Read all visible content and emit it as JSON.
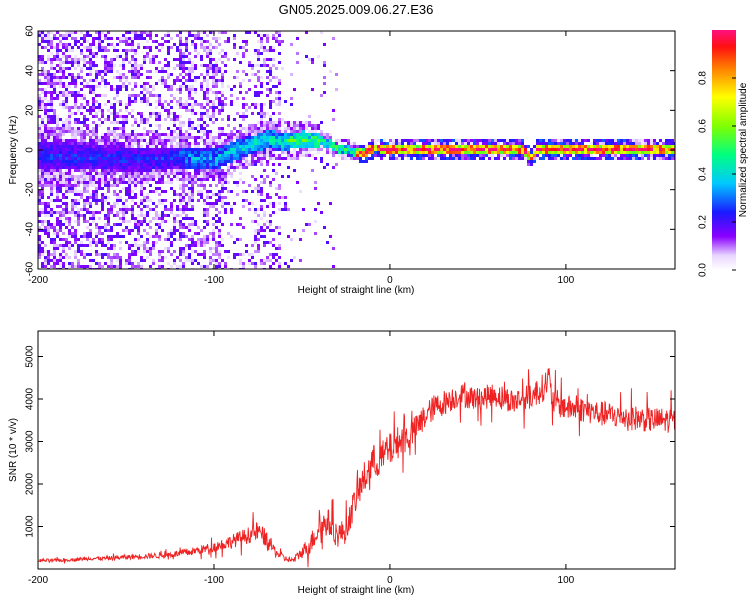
{
  "title": "GN05.2025.009.06.27.E36",
  "chart_data": [
    {
      "type": "heatmap",
      "xlabel": "Height of straight line (km)",
      "ylabel": "Frequency (Hz)",
      "xlim": [
        -200,
        162
      ],
      "ylim": [
        -60,
        60
      ],
      "xticks": [
        -200,
        -100,
        0,
        100
      ],
      "yticks": [
        -60,
        -40,
        -20,
        0,
        20,
        40,
        60
      ],
      "colorbar": {
        "label": "Normalized spectral amplitude",
        "range": [
          0,
          1
        ],
        "ticks": [
          0.0,
          0.2,
          0.4,
          0.6,
          0.8
        ]
      },
      "ridge": {
        "x": [
          -200,
          -170,
          -140,
          -120,
          -100,
          -90,
          -80,
          -70,
          -62,
          -50,
          -40,
          -35,
          -30,
          -25,
          -20,
          -15,
          -12,
          -8,
          -5,
          0,
          20,
          40,
          60,
          75,
          78,
          80,
          83,
          90,
          110,
          130,
          150,
          162
        ],
        "y": [
          -2,
          -3,
          -4,
          -3,
          -4,
          0,
          3,
          6,
          5,
          6,
          5,
          4,
          1,
          1,
          -1,
          -1,
          1,
          2,
          1,
          1,
          1,
          1,
          1,
          1,
          -2,
          -3,
          1,
          1,
          1,
          1,
          1,
          1
        ]
      }
    },
    {
      "type": "line",
      "xlabel": "Height of straight line (km)",
      "ylabel": "SNR (10 * v/v)",
      "xlim": [
        -200,
        162
      ],
      "ylim": [
        0,
        5600
      ],
      "xticks": [
        -200,
        -100,
        0,
        100
      ],
      "yticks": [
        1000,
        2000,
        3000,
        4000,
        5000
      ],
      "color": "#ee2222",
      "series": [
        {
          "x": [
            -200,
            -190,
            -180,
            -170,
            -160,
            -150,
            -140,
            -130,
            -120,
            -110,
            -100,
            -90,
            -80,
            -75,
            -70,
            -65,
            -60,
            -55,
            -50,
            -45,
            -40,
            -35,
            -30,
            -25,
            -20,
            -15,
            -10,
            -5,
            0,
            5,
            10,
            15,
            20,
            25,
            30,
            35,
            40,
            45,
            50,
            60,
            70,
            80,
            85,
            88,
            90,
            92,
            95,
            100,
            110,
            120,
            130,
            140,
            150,
            162
          ],
          "y": [
            200,
            200,
            220,
            250,
            250,
            280,
            300,
            320,
            360,
            430,
            520,
            650,
            800,
            900,
            700,
            400,
            250,
            200,
            400,
            600,
            1000,
            1100,
            800,
            900,
            1600,
            2100,
            2500,
            2600,
            2800,
            3000,
            3100,
            3300,
            3600,
            3800,
            3900,
            4000,
            4100,
            4050,
            4000,
            4100,
            3950,
            4050,
            4200,
            4300,
            4500,
            4000,
            3900,
            3800,
            3750,
            3650,
            3600,
            3550,
            3500,
            3500
          ],
          "noise": [
            40,
            40,
            40,
            45,
            50,
            55,
            60,
            70,
            80,
            100,
            120,
            160,
            200,
            220,
            200,
            120,
            80,
            60,
            150,
            250,
            300,
            320,
            300,
            300,
            350,
            400,
            420,
            400,
            400,
            380,
            350,
            330,
            320,
            300,
            300,
            290,
            280,
            280,
            280,
            290,
            290,
            300,
            320,
            340,
            360,
            340,
            320,
            300,
            300,
            300,
            300,
            300,
            300,
            300
          ]
        }
      ]
    }
  ]
}
